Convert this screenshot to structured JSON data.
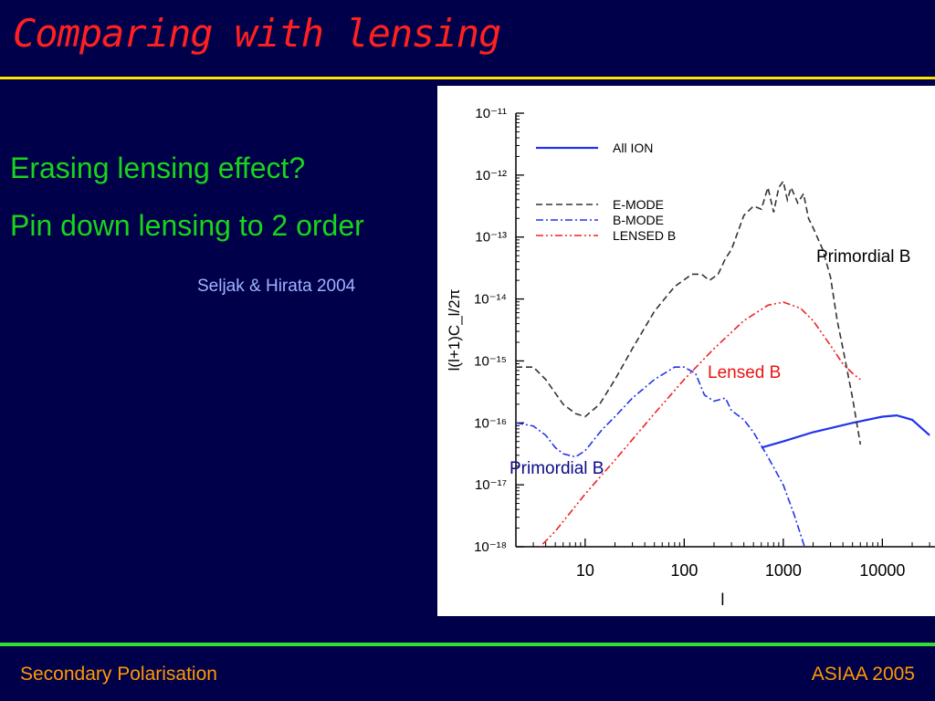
{
  "slide": {
    "title": "Comparing with lensing",
    "bullets": [
      "Erasing lensing effect?",
      "Pin down lensing to 2 order"
    ],
    "citation": "Seljak & Hirata 2004",
    "footer_left": "Secondary Polarisation",
    "footer_right": "ASIAA 2005",
    "colors": {
      "background": "#00004a",
      "title": "#ff2020",
      "bullets": "#19d519",
      "citation": "#9fb3ff",
      "footer": "#ff9900",
      "top_rule": "#ffe400",
      "bottom_rule": "#33dd33"
    }
  },
  "chart_data": {
    "type": "line",
    "xlabel": "l",
    "ylabel": "l(l+1)C_l/2π",
    "xscale": "log",
    "yscale": "log",
    "xlim": [
      2,
      30000
    ],
    "ylim": [
      1e-18,
      1e-11
    ],
    "x_ticks": [
      10,
      100,
      1000,
      10000
    ],
    "x_tick_labels": [
      "10",
      "100",
      "1000",
      "10000"
    ],
    "y_ticks": [
      -18,
      -17,
      -16,
      -15,
      -14,
      -13,
      -12,
      -11
    ],
    "y_tick_labels": [
      "10⁻¹⁸",
      "10⁻¹⁷",
      "10⁻¹⁶",
      "10⁻¹⁵",
      "10⁻¹⁴",
      "10⁻¹³",
      "10⁻¹²",
      "10⁻¹¹"
    ],
    "legend_position": "top-left",
    "series": [
      {
        "name": "All ION",
        "color": "#2233ee",
        "dash": "solid",
        "x": [
          600,
          1000,
          2000,
          5000,
          10000,
          14000,
          20000,
          30000
        ],
        "log10_y": [
          -16.4,
          -16.3,
          -16.15,
          -16.0,
          -15.9,
          -15.88,
          -15.95,
          -16.2
        ]
      },
      {
        "name": "E-MODE",
        "color": "#333333",
        "dash": "7 4",
        "x": [
          2,
          3,
          4,
          6,
          8,
          10,
          14,
          20,
          30,
          50,
          80,
          120,
          150,
          180,
          220,
          260,
          300,
          400,
          500,
          600,
          700,
          800,
          900,
          1000,
          1100,
          1200,
          1400,
          1600,
          1800,
          2000,
          2500,
          3000,
          3500,
          4000,
          5000,
          6000
        ],
        "log10_y": [
          -15.1,
          -15.1,
          -15.3,
          -15.7,
          -15.85,
          -15.9,
          -15.7,
          -15.3,
          -14.8,
          -14.2,
          -13.8,
          -13.6,
          -13.6,
          -13.7,
          -13.6,
          -13.35,
          -13.2,
          -12.65,
          -12.5,
          -12.55,
          -12.2,
          -12.6,
          -12.2,
          -12.1,
          -12.4,
          -12.2,
          -12.45,
          -12.3,
          -12.7,
          -12.85,
          -13.2,
          -13.65,
          -14.35,
          -14.8,
          -15.6,
          -16.35
        ]
      },
      {
        "name": "B-MODE",
        "color": "#2233ee",
        "dash": "8 3 2 3",
        "x": [
          2,
          3,
          4,
          5,
          6,
          8,
          10,
          15,
          20,
          30,
          50,
          80,
          100,
          130,
          160,
          200,
          260,
          300,
          400,
          500,
          700,
          1000,
          1300,
          1600,
          1800
        ],
        "log10_y": [
          -16.0,
          -16.05,
          -16.2,
          -16.4,
          -16.5,
          -16.55,
          -16.45,
          -16.1,
          -15.9,
          -15.6,
          -15.3,
          -15.1,
          -15.1,
          -15.2,
          -15.55,
          -15.65,
          -15.6,
          -15.8,
          -15.95,
          -16.15,
          -16.55,
          -17.0,
          -17.5,
          -17.95,
          -18.2
        ]
      },
      {
        "name": "LENSED B",
        "color": "#ee2222",
        "dash": "8 3 2 3 2 3",
        "x": [
          2,
          5,
          10,
          20,
          50,
          100,
          200,
          400,
          700,
          1000,
          1500,
          2000,
          3000,
          4000,
          5000,
          6000
        ],
        "log10_y": [
          -18.4,
          -17.75,
          -17.15,
          -16.6,
          -15.85,
          -15.3,
          -14.8,
          -14.35,
          -14.1,
          -14.05,
          -14.15,
          -14.35,
          -14.75,
          -15.05,
          -15.2,
          -15.3
        ]
      }
    ],
    "annotations": [
      {
        "text": "Primordial B",
        "color": "#000000"
      },
      {
        "text": "Lensed B",
        "color": "#ee1111"
      },
      {
        "text": "Primordial B",
        "color": "#0a0a88"
      }
    ]
  }
}
